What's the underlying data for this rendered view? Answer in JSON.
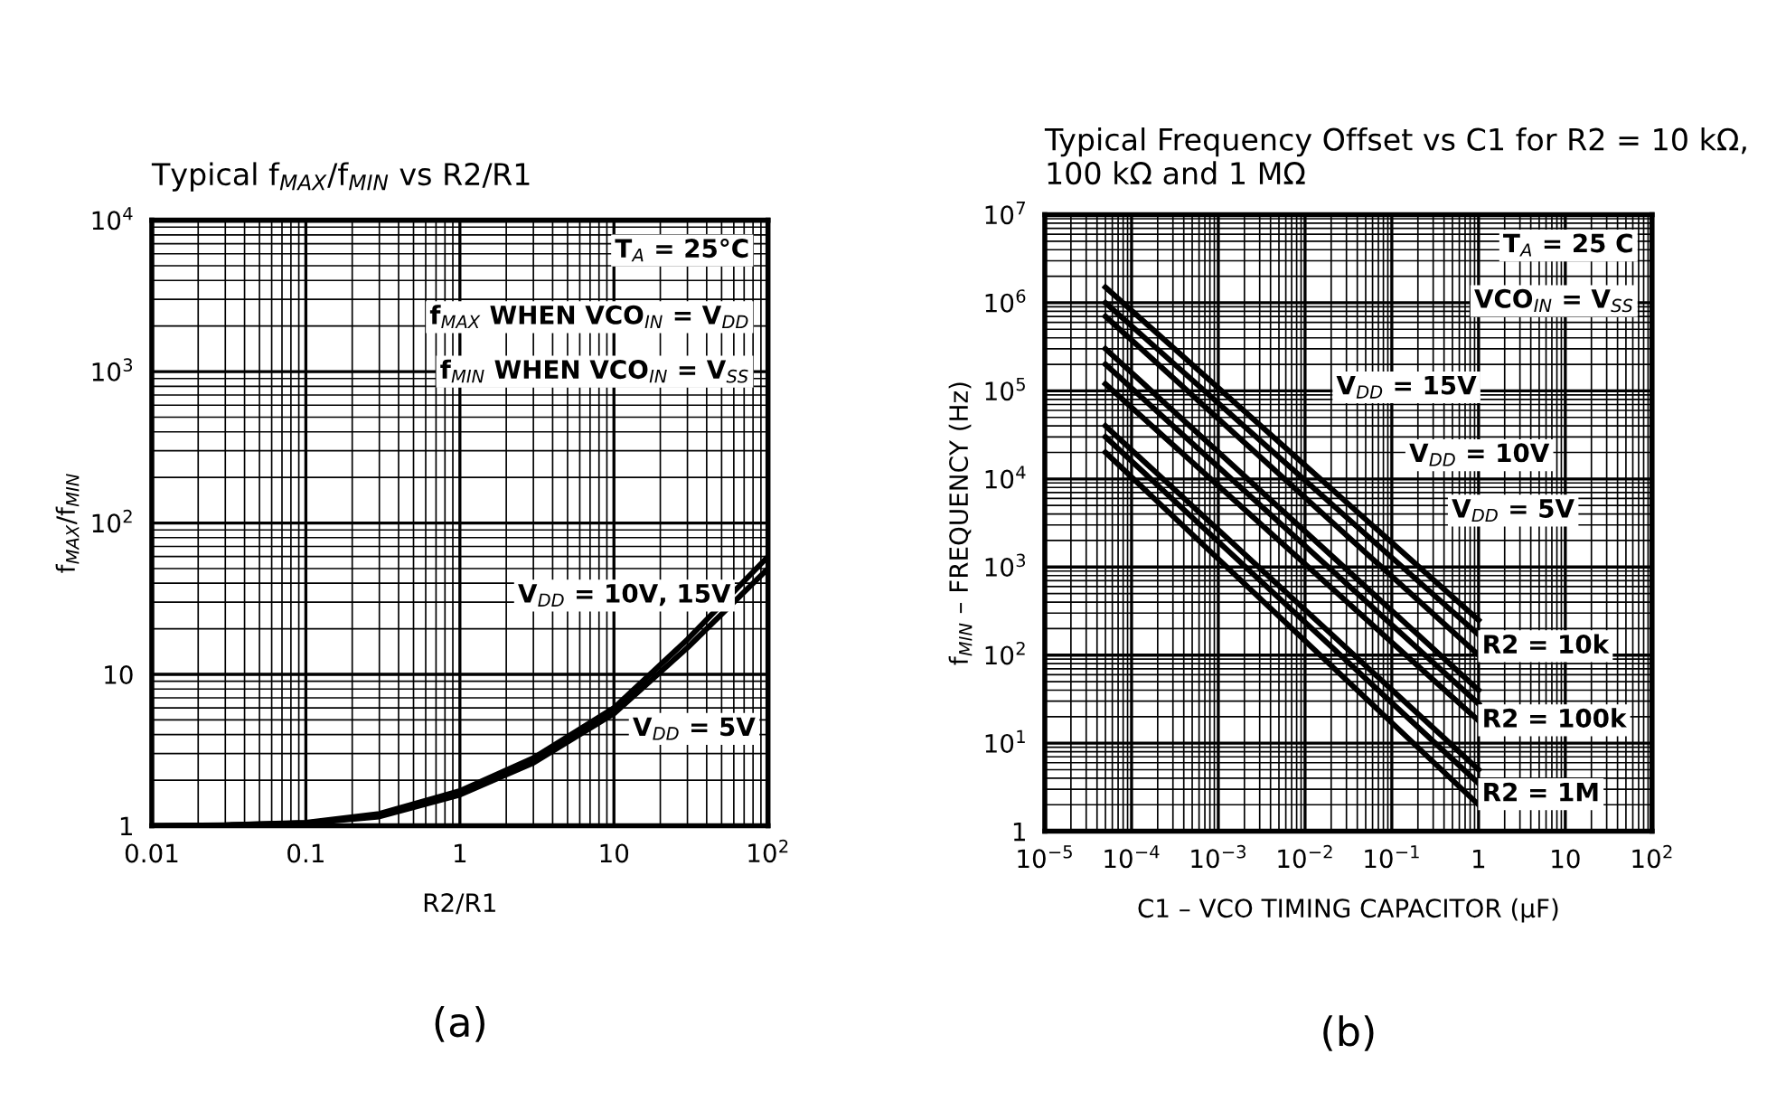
{
  "chart_data": [
    {
      "type": "line",
      "title": "Typical f$_{MAX}$/f$_{MIN}$ vs R2/R1",
      "xlabel": "R2/R1",
      "ylabel": "f$_{MAX}$/f$_{MIN}$",
      "log": "xy",
      "grid": true,
      "legend": false,
      "xlim": [
        0.01,
        100
      ],
      "ylim": [
        1,
        10000
      ],
      "xticks": [
        0.01,
        0.1,
        1,
        10,
        {
          "value": 100,
          "label": "10$^{2}$"
        }
      ],
      "yticks": [
        1,
        10,
        {
          "value": 100,
          "label": "10$^{2}$"
        },
        {
          "value": 1000,
          "label": "10$^{3}$"
        },
        {
          "value": 10000,
          "label": "10$^{4}$"
        }
      ],
      "series": [
        {
          "color": "#000000",
          "x": [
            0.01,
            0.03,
            0.1,
            0.3,
            1,
            3,
            10,
            30,
            100
          ],
          "values": [
            1,
            1.01,
            1.05,
            1.2,
            1.7,
            2.8,
            6,
            17,
            60
          ]
        },
        {
          "color": "#000000",
          "x": [
            0.01,
            0.03,
            0.1,
            0.3,
            1,
            3,
            10,
            30,
            100
          ],
          "values": [
            1,
            1.01,
            1.04,
            1.15,
            1.6,
            2.6,
            5.5,
            15,
            50
          ]
        }
      ],
      "annotations": [
        "T$_{A}$ = 25°C",
        "f$_{MAX}$ WHEN VCO$_{IN}$ = V$_{DD}$",
        "f$_{MIN}$ WHEN VCO$_{IN}$ = V$_{SS}$",
        "V$_{DD}$ = 10V, 15V",
        "V$_{DD}$ = 5V",
        "(a)"
      ]
    },
    {
      "type": "line",
      "title": "Typical Frequency Offset vs C1 for R2 = 10 kΩ, 100 kΩ and 1 MΩ",
      "xlabel": "C1 – VCO TIMING CAPACITOR (μF)",
      "ylabel": "f$_{MIN}$ – FREQUENCY (Hz)",
      "log": "xy",
      "grid": true,
      "legend": false,
      "xlim": [
        1e-05,
        100
      ],
      "ylim": [
        1,
        10000000
      ],
      "xticks": [
        {
          "value": 1e-05,
          "label": "10$^{−5}$"
        },
        {
          "value": 0.0001,
          "label": "10$^{−4}$"
        },
        {
          "value": 0.001,
          "label": "10$^{−3}$"
        },
        {
          "value": 0.01,
          "label": "10$^{−2}$"
        },
        {
          "value": 0.1,
          "label": "10$^{−1}$"
        },
        1,
        10,
        {
          "value": 100,
          "label": "10$^{2}$"
        }
      ],
      "yticks": [
        1,
        {
          "value": 10,
          "label": "10$^{1}$"
        },
        {
          "value": 100,
          "label": "10$^{2}$"
        },
        {
          "value": 1000,
          "label": "10$^{3}$"
        },
        {
          "value": 10000,
          "label": "10$^{4}$"
        },
        {
          "value": 100000,
          "label": "10$^{5}$"
        },
        {
          "value": 1000000,
          "label": "10$^{6}$"
        },
        {
          "value": 10000000,
          "label": "10$^{7}$"
        }
      ],
      "series": [
        {
          "color": "#000000",
          "x": [
            5e-05,
            1
          ],
          "values": [
            1500000,
            250
          ]
        },
        {
          "color": "#000000",
          "x": [
            5e-05,
            1
          ],
          "values": [
            1000000,
            170
          ]
        },
        {
          "color": "#000000",
          "x": [
            5e-05,
            1
          ],
          "values": [
            700000,
            100
          ]
        },
        {
          "color": "#000000",
          "x": [
            5e-05,
            1
          ],
          "values": [
            300000,
            40
          ]
        },
        {
          "color": "#000000",
          "x": [
            5e-05,
            1
          ],
          "values": [
            200000,
            28
          ]
        },
        {
          "color": "#000000",
          "x": [
            5e-05,
            1
          ],
          "values": [
            120000,
            18
          ]
        },
        {
          "color": "#000000",
          "x": [
            5e-05,
            1
          ],
          "values": [
            40000,
            5
          ]
        },
        {
          "color": "#000000",
          "x": [
            5e-05,
            1
          ],
          "values": [
            30000,
            3.5
          ]
        },
        {
          "color": "#000000",
          "x": [
            5e-05,
            1
          ],
          "values": [
            20000,
            2
          ]
        }
      ],
      "annotations": [
        "T$_{A}$ = 25 C",
        "VCO$_{IN}$ = V$_{SS}$",
        "V$_{DD}$ = 15V",
        "V$_{DD}$ = 10V",
        "V$_{DD}$ = 5V",
        "R2 = 10k",
        "R2 = 100k",
        "R2 = 1M",
        "(b)"
      ]
    }
  ]
}
